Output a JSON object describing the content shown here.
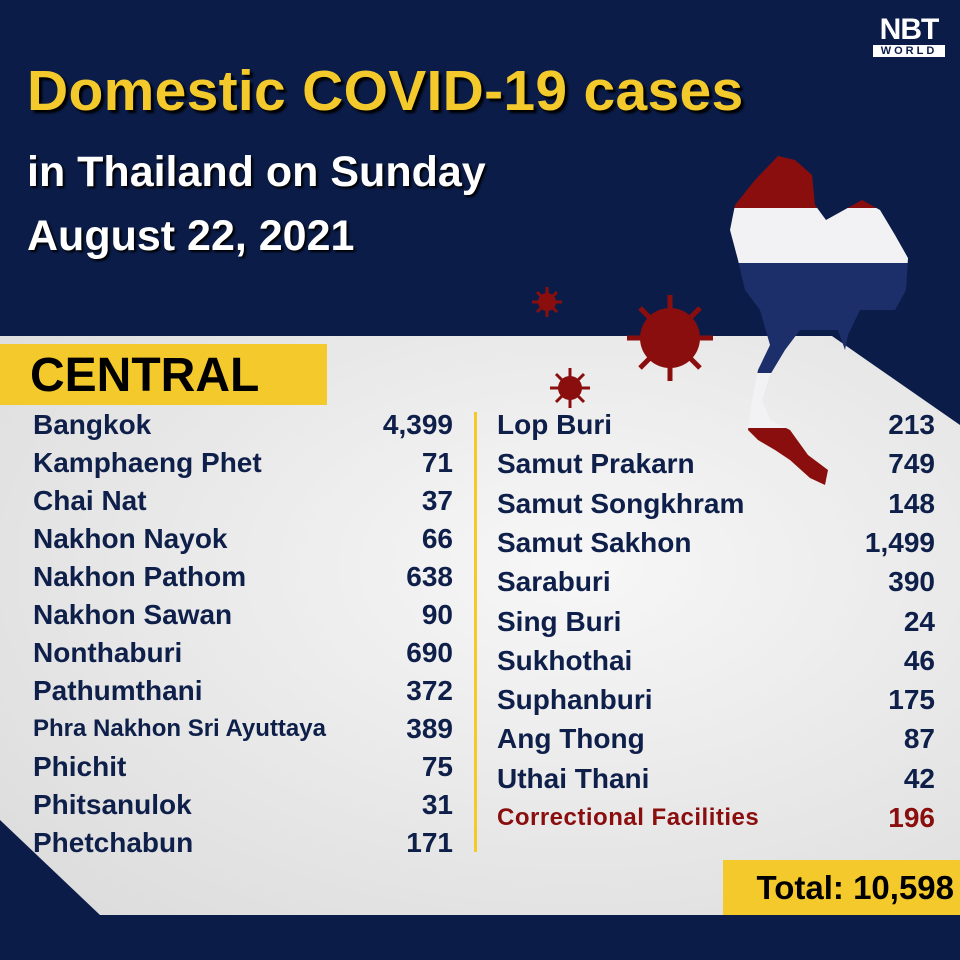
{
  "logo": {
    "top": "NBT",
    "bottom": "WORLD"
  },
  "title": "Domestic COVID-19 cases",
  "subtitle_line1": "in Thailand on Sunday",
  "subtitle_line2": "August 22, 2021",
  "region": "CENTRAL",
  "left_column": [
    {
      "name": "Bangkok",
      "value": "4,399"
    },
    {
      "name": "Kamphaeng Phet",
      "value": "71"
    },
    {
      "name": "Chai Nat",
      "value": "37"
    },
    {
      "name": "Nakhon Nayok",
      "value": "66"
    },
    {
      "name": "Nakhon Pathom",
      "value": "638"
    },
    {
      "name": "Nakhon Sawan",
      "value": "90"
    },
    {
      "name": "Nonthaburi",
      "value": "690"
    },
    {
      "name": "Pathumthani",
      "value": "372"
    },
    {
      "name": "Phra Nakhon Sri Ayuttaya",
      "value": "389"
    },
    {
      "name": "Phichit",
      "value": "75"
    },
    {
      "name": "Phitsanulok",
      "value": "31"
    },
    {
      "name": "Phetchabun",
      "value": "171"
    }
  ],
  "right_column": [
    {
      "name": "Lop Buri",
      "value": "213"
    },
    {
      "name": "Samut Prakarn",
      "value": "749"
    },
    {
      "name": "Samut Songkhram",
      "value": "148"
    },
    {
      "name": "Samut Sakhon",
      "value": "1,499"
    },
    {
      "name": "Saraburi",
      "value": "390"
    },
    {
      "name": "Sing Buri",
      "value": "24"
    },
    {
      "name": "Sukhothai",
      "value": "46"
    },
    {
      "name": "Suphanburi",
      "value": "175"
    },
    {
      "name": "Ang Thong",
      "value": "87"
    },
    {
      "name": "Uthai Thani",
      "value": "42"
    },
    {
      "name": "Correctional Facilities",
      "value": "196"
    }
  ],
  "total": "Total: 10,598",
  "colors": {
    "navy": "#0b1c48",
    "yellow": "#f3c92c",
    "red": "#8b0e0e",
    "panel": "#ececec"
  },
  "icons": [
    "thailand-flag-map",
    "virus-icon"
  ]
}
